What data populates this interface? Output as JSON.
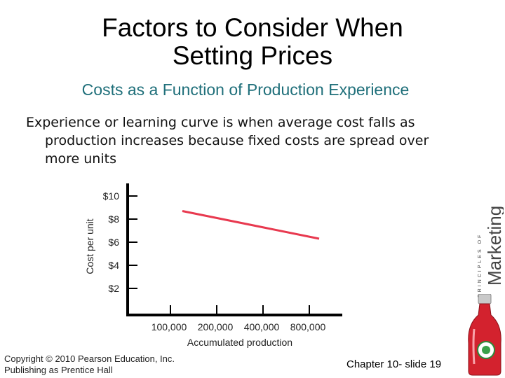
{
  "slide": {
    "title_line1": "Factors to Consider When",
    "title_line2": "Setting Prices",
    "subtitle": "Costs as a Function of Production Experience",
    "body": "Experience or learning curve is when average cost falls as production increases because fixed costs are spread over more units",
    "brand": {
      "small": "PRINCIPLES OF",
      "large": "Marketing"
    },
    "footer": {
      "copyright_line1": "Copyright © 2010 Pearson Education, Inc.",
      "copyright_line2": "Publishing as Prentice Hall",
      "chapter": "Chapter 10- slide 19"
    },
    "colors": {
      "subtitle": "#1f6f7a",
      "line": "#e8394f"
    }
  },
  "chart_data": {
    "type": "line",
    "categories": [
      "100,000",
      "200,000",
      "400,000",
      "800,000"
    ],
    "x": [
      100000,
      200000,
      400000,
      800000
    ],
    "series": [
      {
        "values": [
          9.0,
          8.0,
          7.0,
          6.0
        ]
      }
    ],
    "y_ticks": [
      2,
      4,
      6,
      8,
      10
    ],
    "y_tick_labels": [
      "$2",
      "$4",
      "$6",
      "$8",
      "$10"
    ],
    "title": "",
    "xlabel": "Accumulated production",
    "ylabel": "Cost per unit",
    "ylim": [
      0,
      11
    ],
    "x_scale": "log",
    "grid": false,
    "legend": "none"
  }
}
